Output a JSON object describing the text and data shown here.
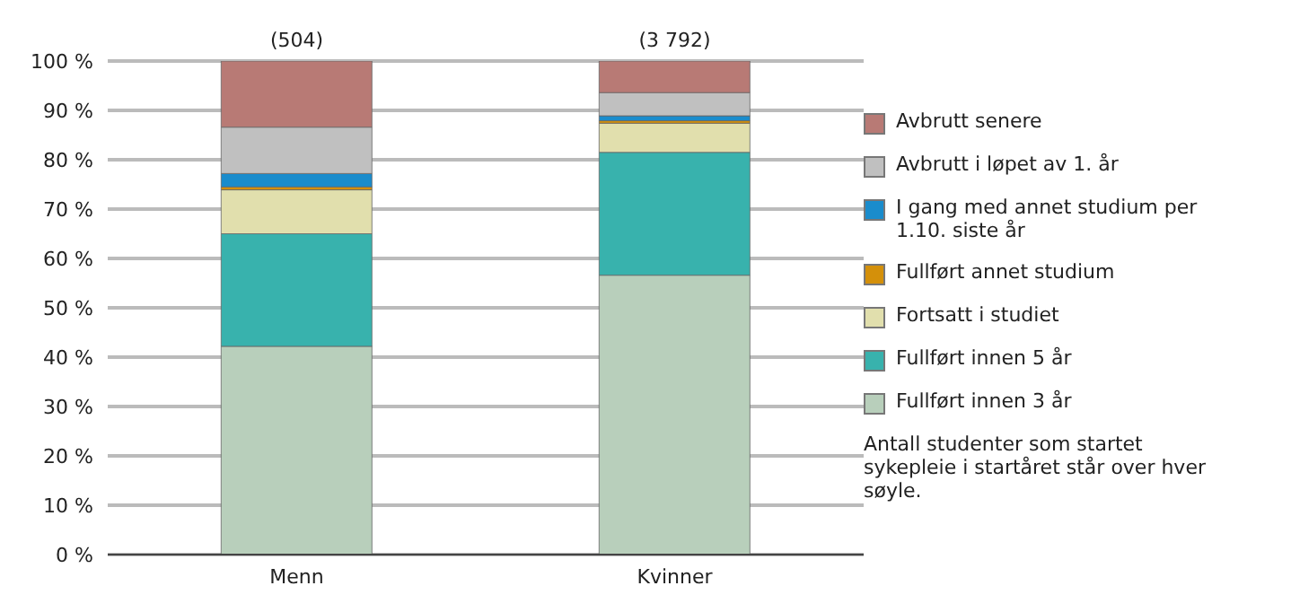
{
  "chart_data": {
    "type": "bar",
    "stacked": true,
    "categories": [
      "Menn",
      "Kvinner"
    ],
    "series": [
      {
        "name": "Fullført innen 3 år",
        "color": "#b8cfbb",
        "values": [
          42.2,
          56.6
        ]
      },
      {
        "name": "Fullført innen 5 år",
        "color": "#38b2ad",
        "values": [
          22.8,
          24.9
        ]
      },
      {
        "name": "Fortsatt i studiet",
        "color": "#e1dfad",
        "values": [
          8.9,
          5.9
        ]
      },
      {
        "name": "Fullført annet studium",
        "color": "#d4900a",
        "values": [
          0.6,
          0.5
        ]
      },
      {
        "name": "I gang med annet studium per 1.10. siste år",
        "color": "#1a8ccc",
        "values": [
          2.7,
          1.0
        ]
      },
      {
        "name": "Avbrutt i løpet av 1. år",
        "color": "#c0c0c0",
        "values": [
          9.4,
          4.7
        ]
      },
      {
        "name": "Avbrutt senere",
        "color": "#b87a75",
        "values": [
          13.4,
          6.4
        ]
      }
    ],
    "ylim": [
      0,
      100
    ],
    "yticks": [
      {
        "value": 0,
        "label": "0 %"
      },
      {
        "value": 10,
        "label": "10 %"
      },
      {
        "value": 20,
        "label": "20 %"
      },
      {
        "value": 30,
        "label": "30 %"
      },
      {
        "value": 40,
        "label": "40 %"
      },
      {
        "value": 50,
        "label": "50 %"
      },
      {
        "value": 60,
        "label": "60 %"
      },
      {
        "value": 70,
        "label": "70 %"
      },
      {
        "value": 80,
        "label": "80 %"
      },
      {
        "value": 90,
        "label": "90 %"
      },
      {
        "value": 100,
        "label": "100 %"
      }
    ],
    "grid": "y",
    "legend": "right",
    "annotations": [
      {
        "text": "(504)",
        "x": "Menn",
        "y": 100
      },
      {
        "text": "(3 792)",
        "x": "Kvinner",
        "y": 100
      },
      "Antall studenter som startet sykepleie i startåret står over hver søyle."
    ]
  }
}
